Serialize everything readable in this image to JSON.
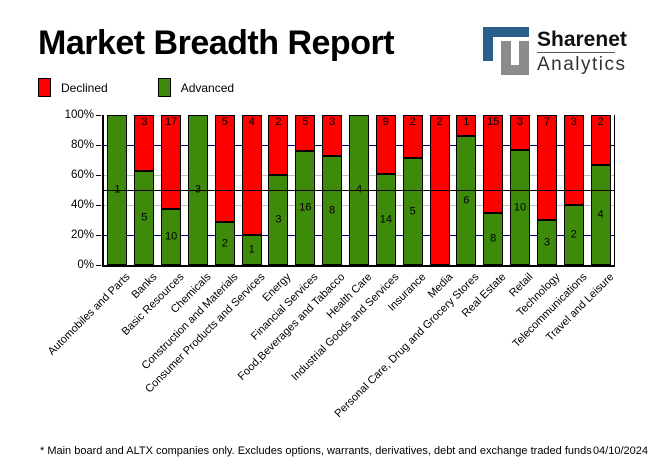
{
  "header": {
    "title": "Market Breadth Report"
  },
  "logo": {
    "name": "Sharenet",
    "sub": "Analytics",
    "glyph": "sharenet-logo",
    "blue": "#2c5f8d",
    "gray": "#8c8c8c"
  },
  "legend": {
    "declined": "Declined",
    "advanced": "Advanced"
  },
  "footer": {
    "note": "* Main board and ALTX companies only. Excludes options, warrants, derivatives, debt and exchange traded funds",
    "date": "04/10/2024"
  },
  "chart_data": {
    "type": "bar",
    "stacked": "percent",
    "title": "Market Breadth Report",
    "categories": [
      "Automobiles and Parts",
      "Banks",
      "Basic Resources",
      "Chemicals",
      "Construction and Materials",
      "Consumer Products and Services",
      "Energy",
      "Financial Services",
      "Food,Beverages and Tabacco",
      "Health Care",
      "Industrial Goods and Services",
      "Insurance",
      "Media",
      "Personal Care, Drug and Grocery Stores",
      "Real Estate",
      "Retail",
      "Technology",
      "Telecommunications",
      "Travel and Leisure"
    ],
    "series": [
      {
        "name": "Advanced",
        "color": "#3e8a0a",
        "values": [
          1,
          5,
          10,
          3,
          2,
          1,
          3,
          16,
          8,
          4,
          14,
          5,
          0,
          6,
          8,
          10,
          3,
          2,
          4
        ]
      },
      {
        "name": "Declined",
        "color": "#fb0200",
        "values": [
          0,
          3,
          17,
          0,
          5,
          4,
          2,
          5,
          3,
          0,
          9,
          2,
          2,
          1,
          15,
          3,
          7,
          3,
          2
        ]
      }
    ],
    "y_ticks": [
      "100%",
      "80%",
      "60%",
      "40%",
      "20%",
      "0%"
    ],
    "ylim": [
      0,
      100
    ],
    "gridlines": {
      "navy_pcts": [
        20,
        80
      ],
      "silver_pcts": [
        40,
        60
      ],
      "navy_color": "#000080",
      "silver_color": "#c0c0c0",
      "reference_line_pct": 50,
      "reference_line_color": "#000000"
    },
    "legend_position": "top-left"
  }
}
